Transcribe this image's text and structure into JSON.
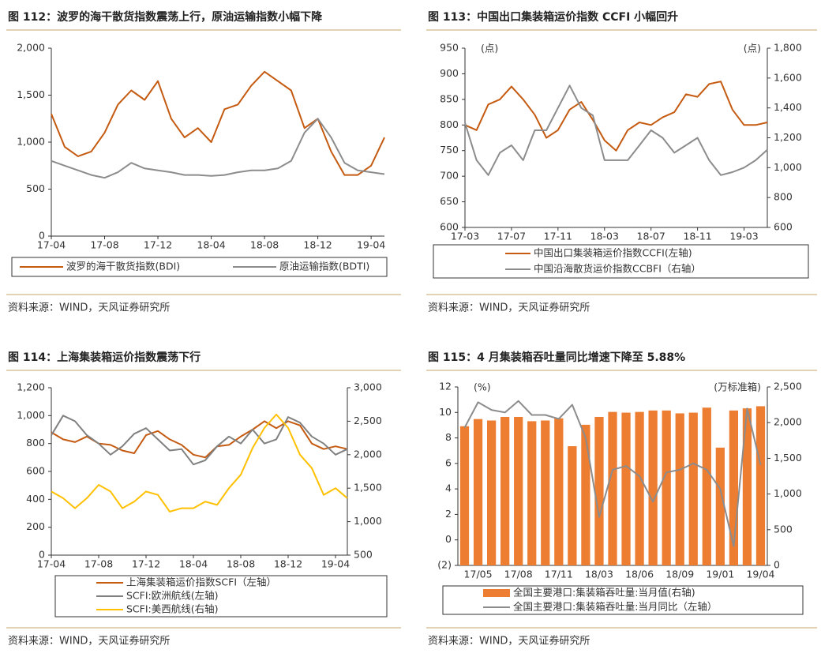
{
  "chart_data": [
    {
      "type": "line",
      "title": "图 112：波罗的海干散货指数震荡上行，原油运输指数小幅下降",
      "source": "资料来源：WIND，天风证券研究所",
      "categories": [
        "17-04",
        null,
        null,
        null,
        "17-08",
        null,
        null,
        null,
        "17-12",
        null,
        null,
        null,
        "18-04",
        null,
        null,
        null,
        "18-08",
        null,
        null,
        null,
        "18-12",
        null,
        null,
        null,
        "19-04",
        null
      ],
      "series": [
        {
          "name": "波罗的海干散货指数(BDI)",
          "color": "#c55a11",
          "values": [
            1300,
            950,
            850,
            900,
            1100,
            1400,
            1550,
            1450,
            1650,
            1250,
            1050,
            1150,
            1000,
            1350,
            1400,
            1600,
            1750,
            1650,
            1550,
            1150,
            1250,
            900,
            650,
            650,
            750,
            1050
          ]
        },
        {
          "name": "原油运输指数(BDTI)",
          "color": "#8c8c8c",
          "values": [
            800,
            750,
            700,
            650,
            620,
            680,
            780,
            720,
            700,
            680,
            650,
            650,
            640,
            650,
            680,
            700,
            700,
            720,
            800,
            1100,
            1250,
            1050,
            780,
            700,
            680,
            660
          ]
        }
      ],
      "ylim": [
        0,
        2000
      ],
      "yticks": [
        0,
        500,
        {
          "value": 1000,
          "label": "1,000"
        },
        {
          "value": 1500,
          "label": "1,500"
        },
        {
          "value": 2000,
          "label": "2,000"
        }
      ]
    },
    {
      "type": "line",
      "title": "图 113：中国出口集装箱运价指数 CCFI 小幅回升",
      "source": "资料来源：WIND，天风证券研究所",
      "categories": [
        "17-03",
        null,
        null,
        null,
        "17-07",
        null,
        null,
        null,
        "17-11",
        null,
        null,
        null,
        "18-03",
        null,
        null,
        null,
        "18-07",
        null,
        null,
        null,
        "18-11",
        null,
        null,
        null,
        "19-03",
        null,
        null
      ],
      "series": [
        {
          "name": "中国出口集装箱运价指数CCFI(左轴)",
          "color": "#c55a11",
          "values": [
            800,
            790,
            840,
            850,
            875,
            850,
            820,
            775,
            790,
            830,
            845,
            810,
            770,
            750,
            790,
            805,
            800,
            815,
            825,
            860,
            855,
            880,
            885,
            830,
            800,
            800,
            805
          ]
        },
        {
          "name": "中国沿海散货运价指数CCBFI（右轴）",
          "color": "#8c8c8c",
          "axis": "y2",
          "values": [
            1300,
            1050,
            950,
            1100,
            1150,
            1050,
            1250,
            1250,
            1400,
            1550,
            1400,
            1350,
            1050,
            1050,
            1050,
            1150,
            1250,
            1200,
            1100,
            1150,
            1200,
            1050,
            950,
            970,
            1000,
            1050,
            1120
          ]
        }
      ],
      "y_label": "(点)",
      "y2_label": "(点)",
      "ylim": [
        600,
        950
      ],
      "yticks": [
        600,
        650,
        700,
        750,
        800,
        850,
        900,
        950
      ],
      "y2lim": [
        600,
        1800
      ],
      "y2ticks": [
        600,
        800,
        {
          "value": 1000,
          "label": "1,000"
        },
        {
          "value": 1200,
          "label": "1,200"
        },
        {
          "value": 1400,
          "label": "1,400"
        },
        {
          "value": 1600,
          "label": "1,600"
        },
        {
          "value": 1800,
          "label": "1,800"
        }
      ]
    },
    {
      "type": "line",
      "title": "图 114：上海集装箱运价指数震荡下行",
      "source": "资料来源：WIND，天风证券研究所",
      "categories": [
        "17-04",
        null,
        null,
        null,
        "17-08",
        null,
        null,
        null,
        "17-12",
        null,
        null,
        null,
        "18-04",
        null,
        null,
        null,
        "18-08",
        null,
        null,
        null,
        "18-12",
        null,
        null,
        null,
        "19-04",
        null
      ],
      "series": [
        {
          "name": "上海集装箱运价指数SCFI（左轴）",
          "color": "#c55a11",
          "values": [
            880,
            830,
            810,
            850,
            800,
            790,
            750,
            730,
            860,
            890,
            830,
            790,
            720,
            700,
            780,
            790,
            850,
            900,
            960,
            910,
            960,
            930,
            800,
            760,
            780,
            760
          ]
        },
        {
          "name": "SCFI:欧洲航线(左轴)",
          "color": "#808080",
          "values": [
            860,
            1000,
            960,
            860,
            800,
            720,
            780,
            870,
            910,
            830,
            750,
            760,
            650,
            680,
            780,
            850,
            800,
            900,
            800,
            830,
            990,
            950,
            850,
            800,
            720,
            760
          ]
        },
        {
          "name": "SCFI:美西航线(右轴)",
          "color": "#ffc000",
          "axis": "y2",
          "values": [
            1450,
            1350,
            1200,
            1350,
            1550,
            1450,
            1200,
            1300,
            1450,
            1400,
            1150,
            1200,
            1200,
            1300,
            1250,
            1500,
            1700,
            2100,
            2400,
            2600,
            2400,
            2000,
            1800,
            1400,
            1500,
            1350
          ]
        }
      ],
      "ylim": [
        0,
        1200
      ],
      "yticks": [
        0,
        200,
        400,
        600,
        800,
        {
          "value": 1000,
          "label": "1,000"
        },
        {
          "value": 1200,
          "label": "1,200"
        }
      ],
      "y2lim": [
        500,
        3000
      ],
      "y2ticks": [
        500,
        {
          "value": 1000,
          "label": "1,000"
        },
        {
          "value": 1500,
          "label": "1,500"
        },
        {
          "value": 2000,
          "label": "2,000"
        },
        {
          "value": 2500,
          "label": "2,500"
        },
        {
          "value": 3000,
          "label": "3,000"
        }
      ]
    },
    {
      "type": "combo",
      "title": "图 115：4 月集装箱吞吐量同比增速下降至 5.88%",
      "source": "资料来源：WIND，天风证券研究所",
      "categories": [
        null,
        "17/05",
        null,
        null,
        "17/08",
        null,
        null,
        "17/11",
        null,
        null,
        "18/03",
        null,
        null,
        "18/06",
        null,
        null,
        "18/09",
        null,
        null,
        "19/01",
        null,
        null,
        "19/04"
      ],
      "series": [
        {
          "name": "全国主要港口:集装箱吞吐量:当月值(右轴)",
          "color": "#ed7d31",
          "type": "bar",
          "axis": "y2",
          "values": [
            1950,
            2050,
            2030,
            2080,
            2080,
            2020,
            2030,
            2060,
            1670,
            1970,
            2080,
            2150,
            2140,
            2150,
            2170,
            2170,
            2130,
            2140,
            2210,
            1650,
            2170,
            2200,
            2230
          ]
        },
        {
          "name": "全国主要港口:集装箱吞吐量:当月同比（左轴）",
          "color": "#8c8c8c",
          "type": "line",
          "values": [
            8.8,
            10.8,
            10.2,
            10.0,
            10.9,
            9.8,
            9.8,
            9.5,
            10.6,
            8.0,
            1.8,
            5.5,
            5.8,
            5.0,
            3.0,
            5.3,
            5.5,
            6.0,
            5.5,
            4.0,
            -0.5,
            10.3,
            5.88
          ]
        }
      ],
      "y_label": "(%)",
      "y2_label": "(万标准箱)",
      "ylim": [
        -2,
        12
      ],
      "yticks": [
        {
          "value": -2,
          "label": "(2)"
        },
        0,
        2,
        4,
        6,
        8,
        10,
        12
      ],
      "y2lim": [
        0,
        2500
      ],
      "y2ticks": [
        0,
        500,
        {
          "value": 1000,
          "label": "1,000"
        },
        {
          "value": 1500,
          "label": "1,500"
        },
        {
          "value": 2000,
          "label": "2,000"
        },
        {
          "value": 2500,
          "label": "2,500"
        }
      ]
    }
  ]
}
